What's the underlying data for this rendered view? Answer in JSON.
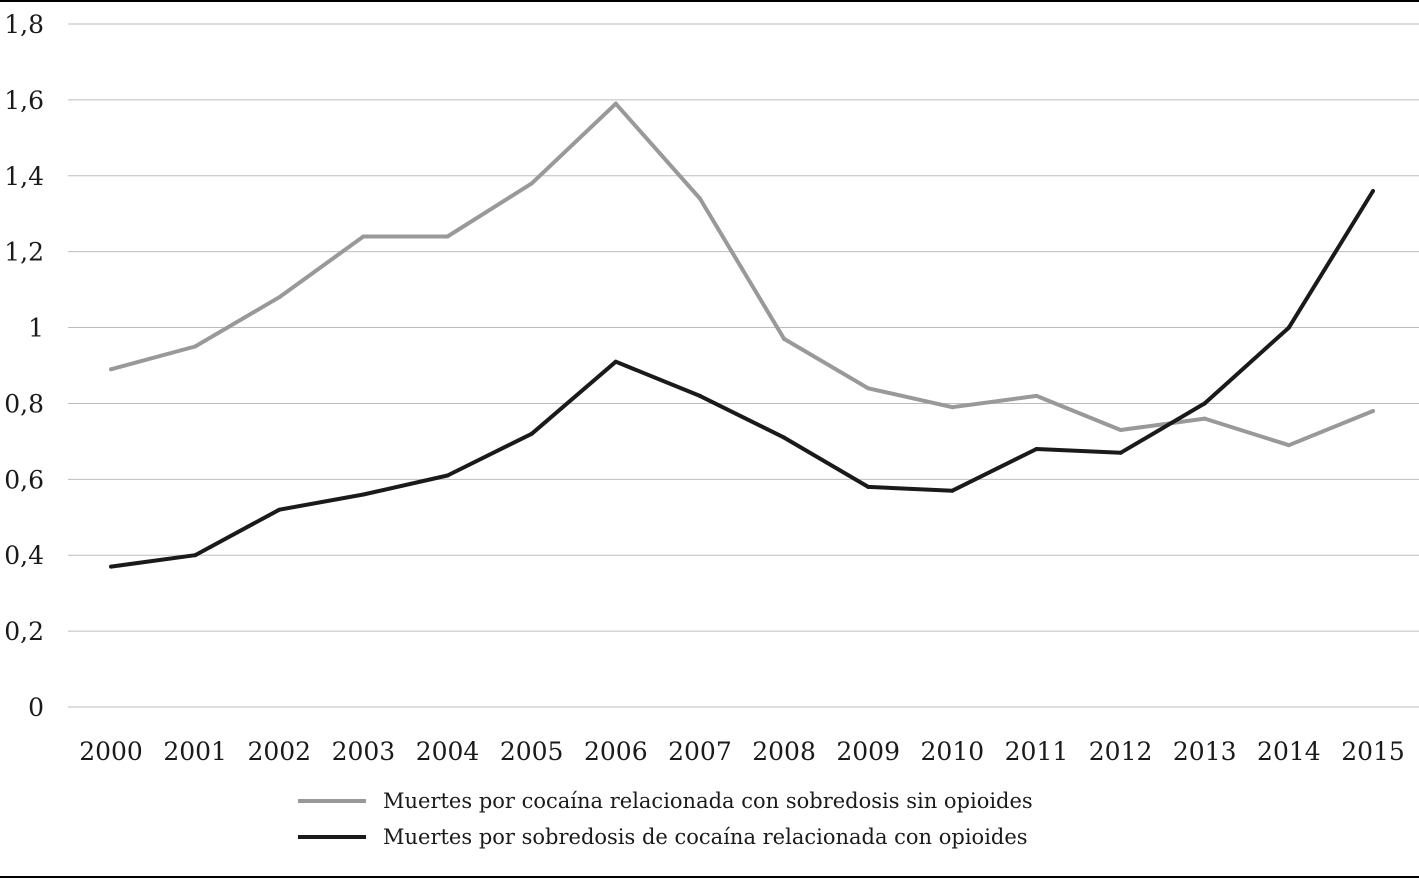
{
  "chart_data": {
    "type": "line",
    "title": "",
    "xlabel": "",
    "ylabel": "",
    "x": [
      "2000",
      "2001",
      "2002",
      "2003",
      "2004",
      "2005",
      "2006",
      "2007",
      "2008",
      "2009",
      "2010",
      "2011",
      "2012",
      "2013",
      "2014",
      "2015"
    ],
    "y_ticks": [
      "0",
      "0,2",
      "0,4",
      "0,6",
      "0,8",
      "1",
      "1,2",
      "1,4",
      "1,6",
      "1,8"
    ],
    "ylim": [
      0,
      1.8
    ],
    "grid": true,
    "legend_position": "bottom-center",
    "series": [
      {
        "name": "Muertes por cocaína relacionada con sobredosis sin opioides",
        "color": "#999999",
        "values": [
          0.89,
          0.95,
          1.08,
          1.24,
          1.24,
          1.38,
          1.59,
          1.34,
          0.97,
          0.84,
          0.79,
          0.82,
          0.73,
          0.76,
          0.69,
          0.78
        ]
      },
      {
        "name": "Muertes por sobredosis de cocaína relacionada con opioides",
        "color": "#1a1a1a",
        "values": [
          0.37,
          0.4,
          0.52,
          0.56,
          0.61,
          0.72,
          0.91,
          0.82,
          0.71,
          0.58,
          0.57,
          0.68,
          0.67,
          0.8,
          1.0,
          1.36
        ]
      }
    ]
  }
}
